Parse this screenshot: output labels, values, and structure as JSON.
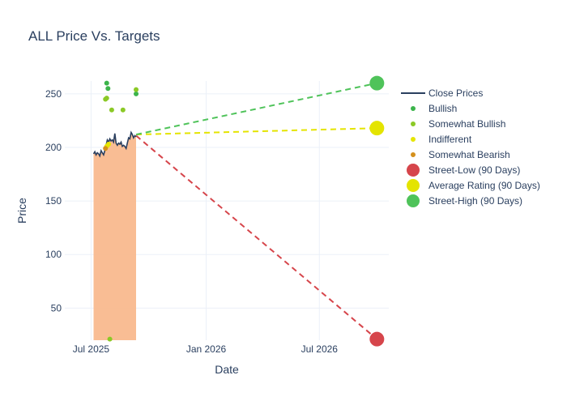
{
  "chart_data": {
    "type": "line",
    "title": "ALL Price Vs. Targets",
    "xlabel": "Date",
    "ylabel": "Price",
    "xlim": [
      "2025-05-20",
      "2026-10-20"
    ],
    "ylim": [
      20,
      262
    ],
    "x_ticks": [
      {
        "date": "2025-07-01",
        "label": "Jul 2025"
      },
      {
        "date": "2026-01-01",
        "label": "Jan 2026"
      },
      {
        "date": "2026-07-01",
        "label": "Jul 2026"
      }
    ],
    "y_ticks": [
      50,
      100,
      150,
      200,
      250
    ],
    "grid": true,
    "legend_position": "right",
    "close_prices": {
      "name": "Close Prices",
      "color": "#2a3f5f",
      "fill_color": "#f9b98e",
      "points": [
        [
          "2025-07-05",
          194
        ],
        [
          "2025-07-07",
          196
        ],
        [
          "2025-07-09",
          193
        ],
        [
          "2025-07-11",
          195
        ],
        [
          "2025-07-13",
          194
        ],
        [
          "2025-07-15",
          192
        ],
        [
          "2025-07-17",
          197
        ],
        [
          "2025-07-19",
          195
        ],
        [
          "2025-07-21",
          193
        ],
        [
          "2025-07-23",
          197
        ],
        [
          "2025-07-25",
          202
        ],
        [
          "2025-07-27",
          207
        ],
        [
          "2025-07-29",
          205
        ],
        [
          "2025-07-31",
          208
        ],
        [
          "2025-08-02",
          206
        ],
        [
          "2025-08-04",
          207
        ],
        [
          "2025-08-06",
          205
        ],
        [
          "2025-08-08",
          213
        ],
        [
          "2025-08-10",
          204
        ],
        [
          "2025-08-12",
          202
        ],
        [
          "2025-08-14",
          204
        ],
        [
          "2025-08-16",
          203
        ],
        [
          "2025-08-18",
          205
        ],
        [
          "2025-08-20",
          201
        ],
        [
          "2025-08-22",
          202
        ],
        [
          "2025-08-24",
          201
        ],
        [
          "2025-08-26",
          199
        ],
        [
          "2025-08-28",
          204
        ],
        [
          "2025-08-30",
          209
        ],
        [
          "2025-09-01",
          208
        ],
        [
          "2025-09-03",
          214
        ],
        [
          "2025-09-05",
          212
        ],
        [
          "2025-09-07",
          209
        ],
        [
          "2025-09-09",
          211
        ],
        [
          "2025-09-11",
          210
        ]
      ]
    },
    "ratings": [
      {
        "name": "Bullish",
        "color": "#3cb44b",
        "points": [
          [
            "2025-07-26",
            260
          ],
          [
            "2025-07-28",
            255
          ],
          [
            "2025-09-11",
            250
          ]
        ]
      },
      {
        "name": "Somewhat Bullish",
        "color": "#8bc926",
        "points": [
          [
            "2025-07-24",
            245
          ],
          [
            "2025-07-26",
            246
          ],
          [
            "2025-08-03",
            235
          ],
          [
            "2025-08-21",
            235
          ],
          [
            "2025-09-11",
            254
          ],
          [
            "2025-07-31",
            21
          ]
        ]
      },
      {
        "name": "Indifferent",
        "color": "#e6e600",
        "points": [
          [
            "2025-07-26",
            201
          ],
          [
            "2025-07-29",
            203
          ]
        ]
      },
      {
        "name": "Somewhat Bearish",
        "color": "#d4901c",
        "points": [
          [
            "2025-07-24",
            199
          ]
        ]
      }
    ],
    "targets": [
      {
        "name": "Street-Low (90 Days)",
        "color": "#d6454b",
        "start": [
          "2025-09-11",
          211
        ],
        "end": [
          "2026-10-01",
          21
        ]
      },
      {
        "name": "Average Rating (90 Days)",
        "color": "#e4e400",
        "start": [
          "2025-09-11",
          212
        ],
        "end": [
          "2026-10-01",
          218
        ]
      },
      {
        "name": "Street-High (90 Days)",
        "color": "#4fc35a",
        "start": [
          "2025-09-11",
          212
        ],
        "end": [
          "2026-10-01",
          260
        ]
      }
    ]
  }
}
